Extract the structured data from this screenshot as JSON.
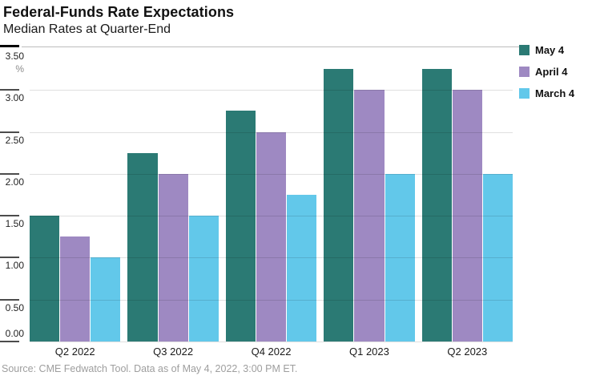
{
  "header": {
    "title": "Federal-Funds Rate Expectations",
    "subtitle": "Median Rates at Quarter-End"
  },
  "chart_data": {
    "type": "bar",
    "title": "Federal-Funds Rate Expectations",
    "subtitle": "Median Rates at Quarter-End",
    "categories": [
      "Q2 2022",
      "Q3 2022",
      "Q4 2022",
      "Q1 2023",
      "Q2 2023"
    ],
    "series": [
      {
        "name": "May 4",
        "color": "#2b7a74",
        "values": [
          1.5,
          2.25,
          2.75,
          3.25,
          3.25
        ]
      },
      {
        "name": "April 4",
        "color": "#9e89c2",
        "values": [
          1.25,
          2.0,
          2.5,
          3.0,
          3.0
        ]
      },
      {
        "name": "March 4",
        "color": "#62c8ea",
        "values": [
          1.0,
          1.5,
          1.75,
          2.0,
          2.0
        ]
      }
    ],
    "ylim": [
      0,
      3.5
    ],
    "y_ticks": [
      3.5,
      3.0,
      2.5,
      2.0,
      1.5,
      1.0,
      0.5,
      0.0
    ],
    "y_tick_labels": [
      "3.50",
      "3.00",
      "2.50",
      "2.00",
      "1.50",
      "1.00",
      "0.50",
      "0.00"
    ],
    "unit_label": "%",
    "grid": "horizontal",
    "legend_position": "top-right"
  },
  "footer": {
    "source": "Source: CME Fedwatch Tool. Data as of May 4, 2022, 3:00 PM ET."
  }
}
